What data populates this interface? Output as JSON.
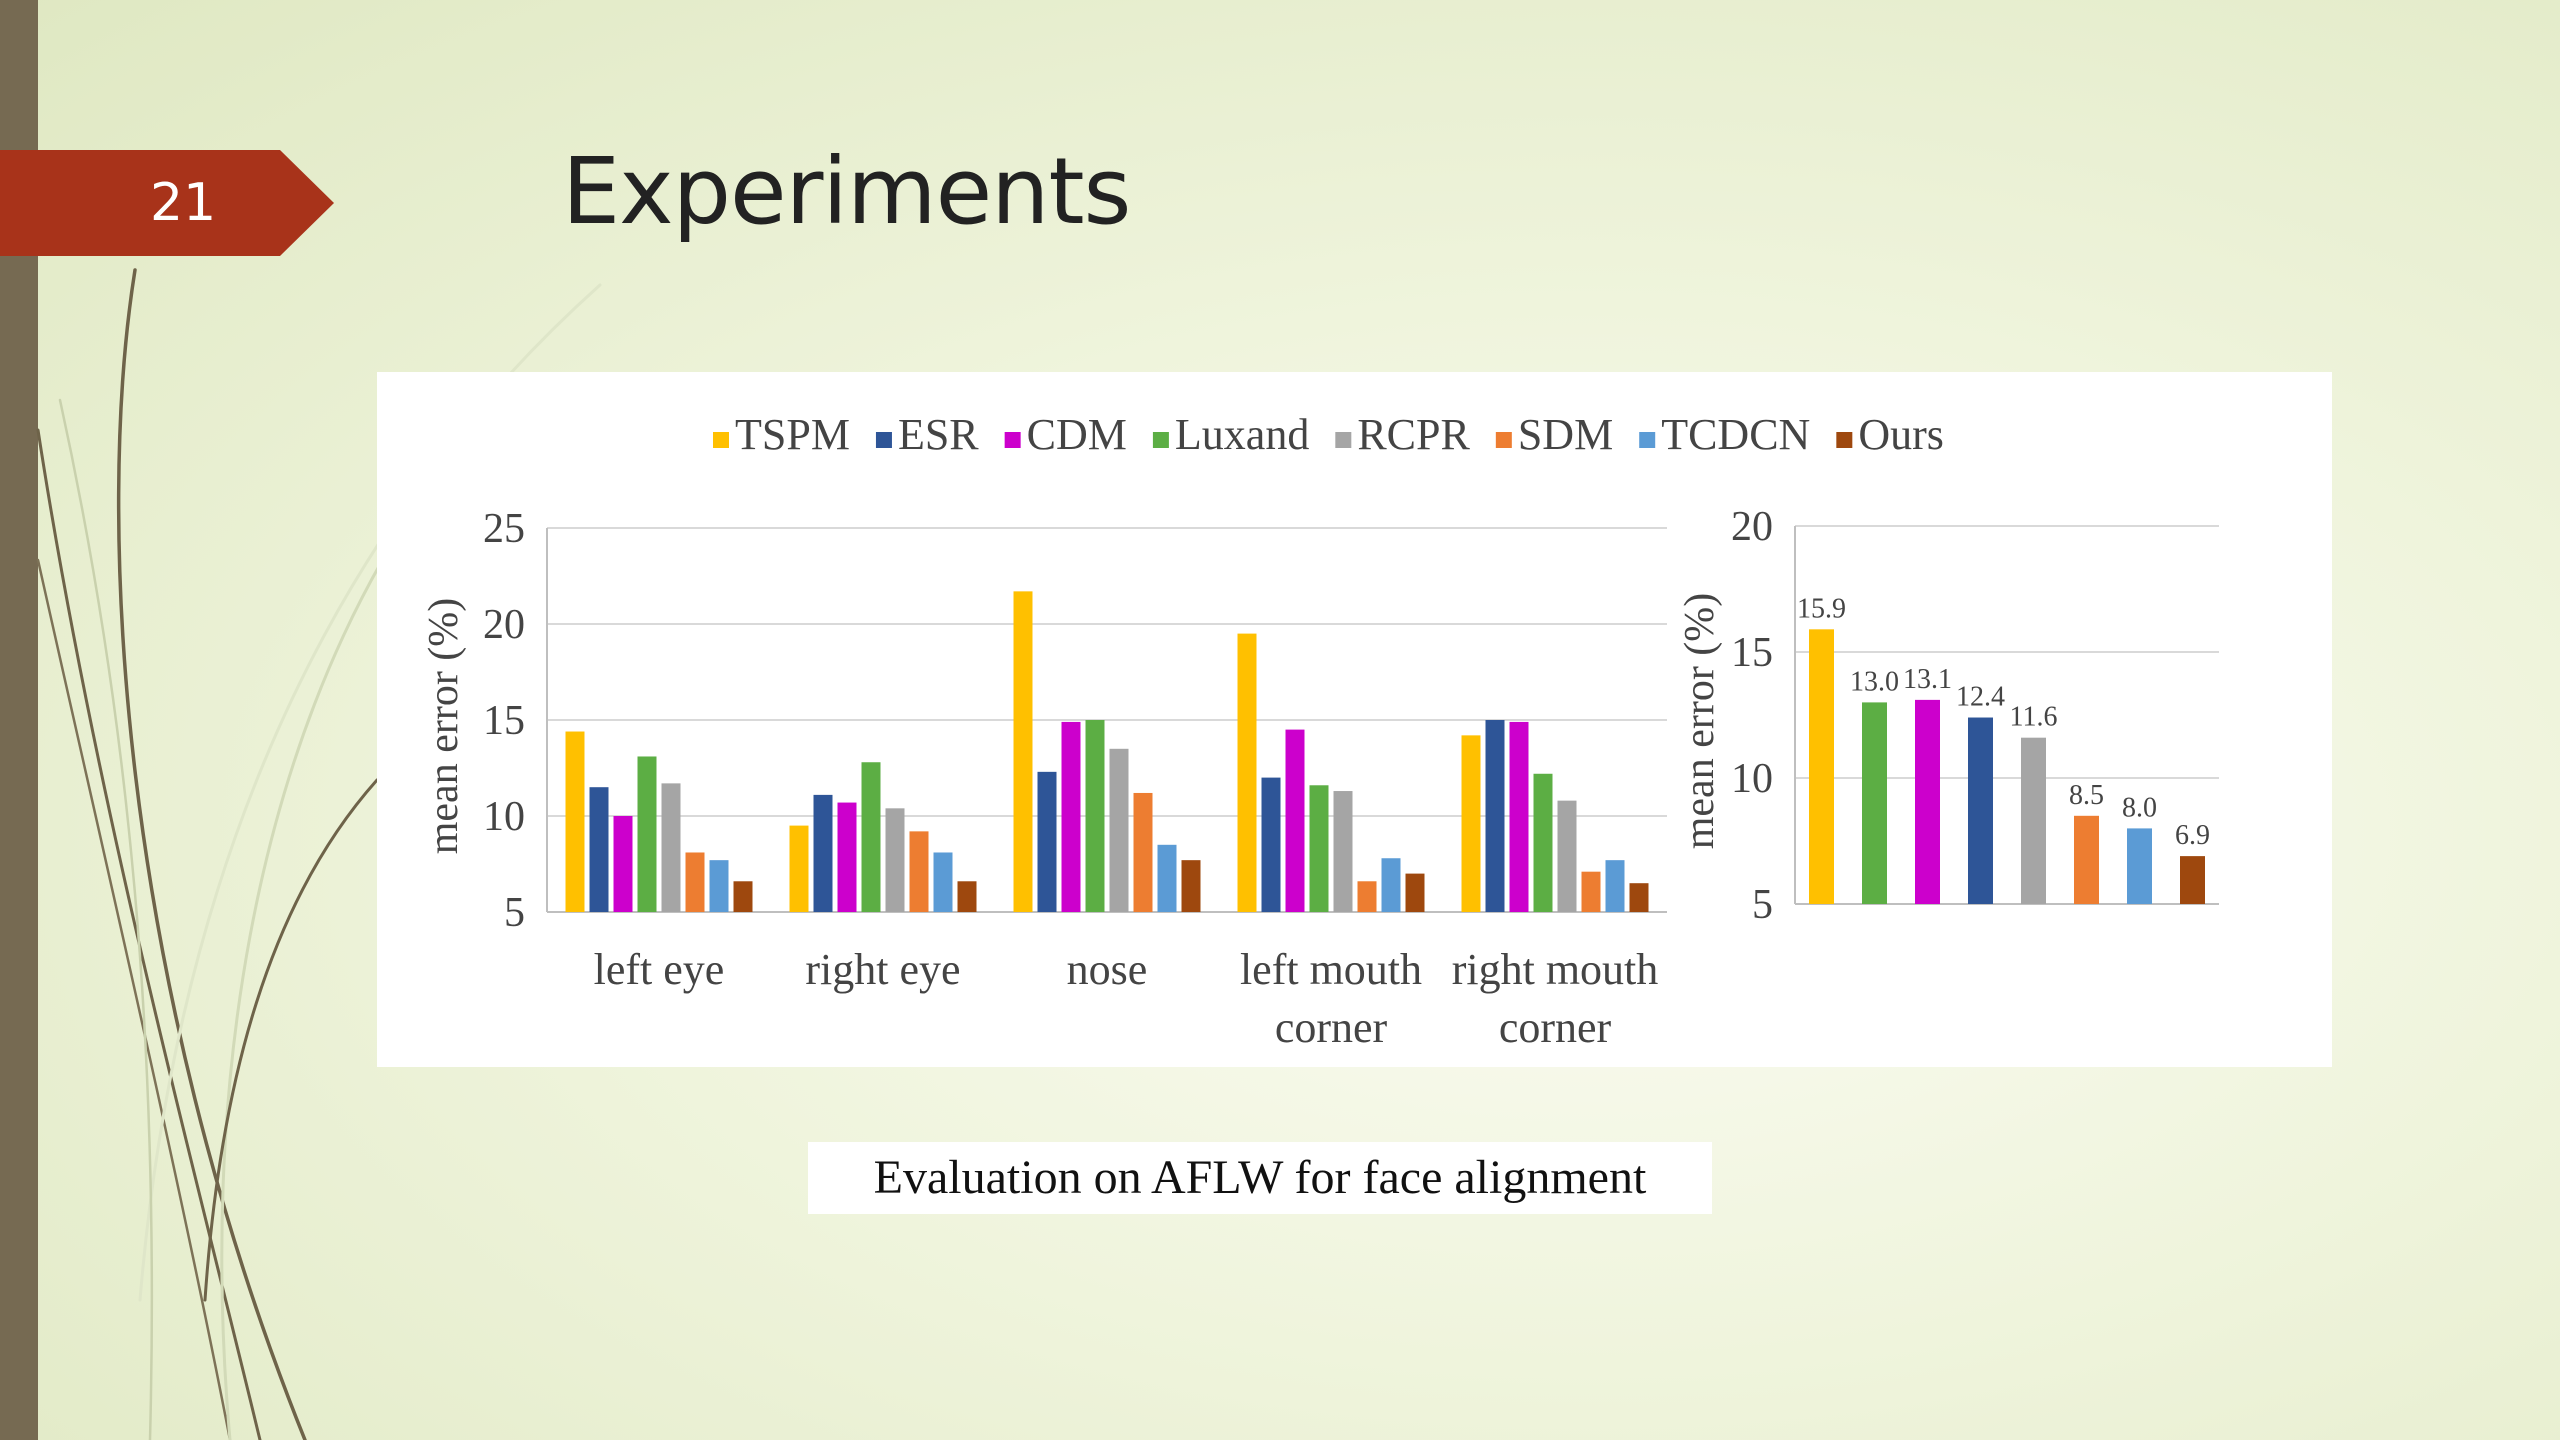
{
  "slide": {
    "page_number": "21",
    "title": "Experiments",
    "caption": "Evaluation on AFLW for face alignment"
  },
  "legend": [
    {
      "name": "TSPM",
      "color": "#ffc000"
    },
    {
      "name": "ESR",
      "color": "#2e5597"
    },
    {
      "name": "CDM",
      "color": "#cc00cc"
    },
    {
      "name": "Luxand",
      "color": "#5cae44"
    },
    {
      "name": "RCPR",
      "color": "#a5a5a5"
    },
    {
      "name": "SDM",
      "color": "#ed7d31"
    },
    {
      "name": "TCDCN",
      "color": "#5b9bd5"
    },
    {
      "name": "Ours",
      "color": "#9e480e"
    }
  ],
  "chart_data": [
    {
      "type": "bar",
      "ylabel": "mean error (%)",
      "ylim": [
        5,
        25
      ],
      "yticks": [
        5,
        10,
        15,
        20,
        25
      ],
      "grid": true,
      "legend_position": "top",
      "categories": [
        "left eye",
        "right eye",
        "nose",
        "left mouth corner",
        "right mouth corner"
      ],
      "category_lines": [
        [
          "left eye"
        ],
        [
          "right eye"
        ],
        [
          "nose"
        ],
        [
          "left mouth",
          "corner"
        ],
        [
          "right mouth",
          "corner"
        ]
      ],
      "series": [
        {
          "name": "TSPM",
          "values": [
            14.4,
            9.5,
            21.7,
            19.5,
            14.2
          ]
        },
        {
          "name": "ESR",
          "values": [
            11.5,
            11.1,
            12.3,
            12.0,
            15.0
          ]
        },
        {
          "name": "CDM",
          "values": [
            10.0,
            10.7,
            14.9,
            14.5,
            14.9
          ]
        },
        {
          "name": "Luxand",
          "values": [
            13.1,
            12.8,
            15.0,
            11.6,
            12.2
          ]
        },
        {
          "name": "RCPR",
          "values": [
            11.7,
            10.4,
            13.5,
            11.3,
            10.8
          ]
        },
        {
          "name": "SDM",
          "values": [
            8.1,
            9.2,
            11.2,
            6.6,
            7.1
          ]
        },
        {
          "name": "TCDCN",
          "values": [
            7.7,
            8.1,
            8.5,
            7.8,
            7.7
          ]
        },
        {
          "name": "Ours",
          "values": [
            6.6,
            6.6,
            7.7,
            7.0,
            6.5
          ]
        }
      ]
    },
    {
      "type": "bar",
      "ylabel": "mean error (%)",
      "ylim": [
        5,
        20
      ],
      "yticks": [
        5,
        10,
        15,
        20
      ],
      "grid": true,
      "categories": [
        "TSPM",
        "Luxand",
        "CDM",
        "ESR",
        "RCPR",
        "SDM",
        "TCDCN",
        "Ours"
      ],
      "values": [
        15.9,
        13.0,
        13.1,
        12.4,
        11.6,
        8.5,
        8.0,
        6.9
      ],
      "data_labels": [
        "15.9",
        "13.0",
        "13.1",
        "12.4",
        "11.6",
        "8.5",
        "8.0",
        "6.9"
      ]
    }
  ]
}
